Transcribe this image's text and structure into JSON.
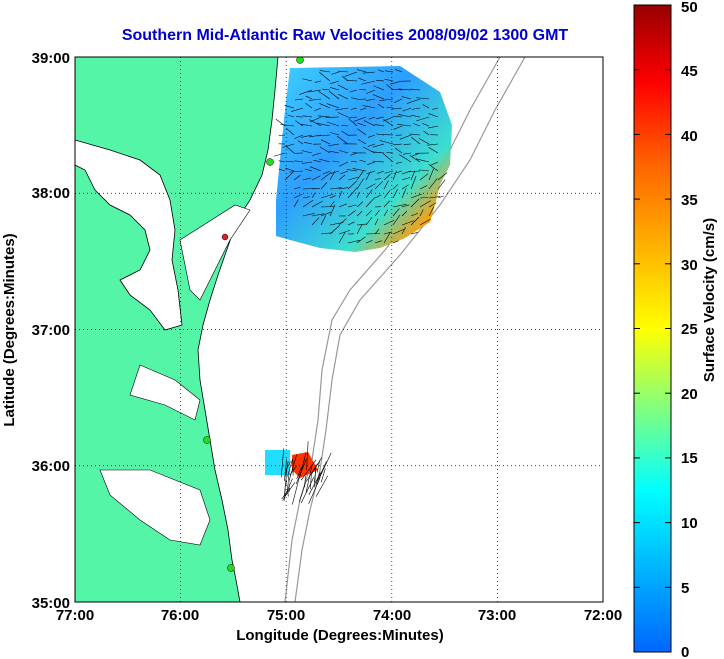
{
  "map": {
    "title": "Southern Mid-Atlantic Raw Velocities 2008/09/02 1300 GMT",
    "xlabel": "Longitude (Degrees:Minutes)",
    "ylabel": "Latitude (Degrees:Minutes)",
    "lon_ticks": [
      "77:00",
      "76:00",
      "75:00",
      "74:00",
      "73:00",
      "72:00"
    ],
    "lat_ticks": [
      "39:00",
      "38:00",
      "37:00",
      "36:00",
      "35:00"
    ],
    "lon_range": [
      -77,
      -72
    ],
    "lat_range": [
      35,
      39
    ],
    "land_color": "#55f5a8",
    "title_color": "#0000cc"
  },
  "colorbar": {
    "label": "Surface Velocity (cm/s)",
    "ticks": [
      "0",
      "5",
      "10",
      "15",
      "20",
      "25",
      "30",
      "35",
      "40",
      "45",
      "50"
    ],
    "range": [
      0,
      50
    ]
  }
}
